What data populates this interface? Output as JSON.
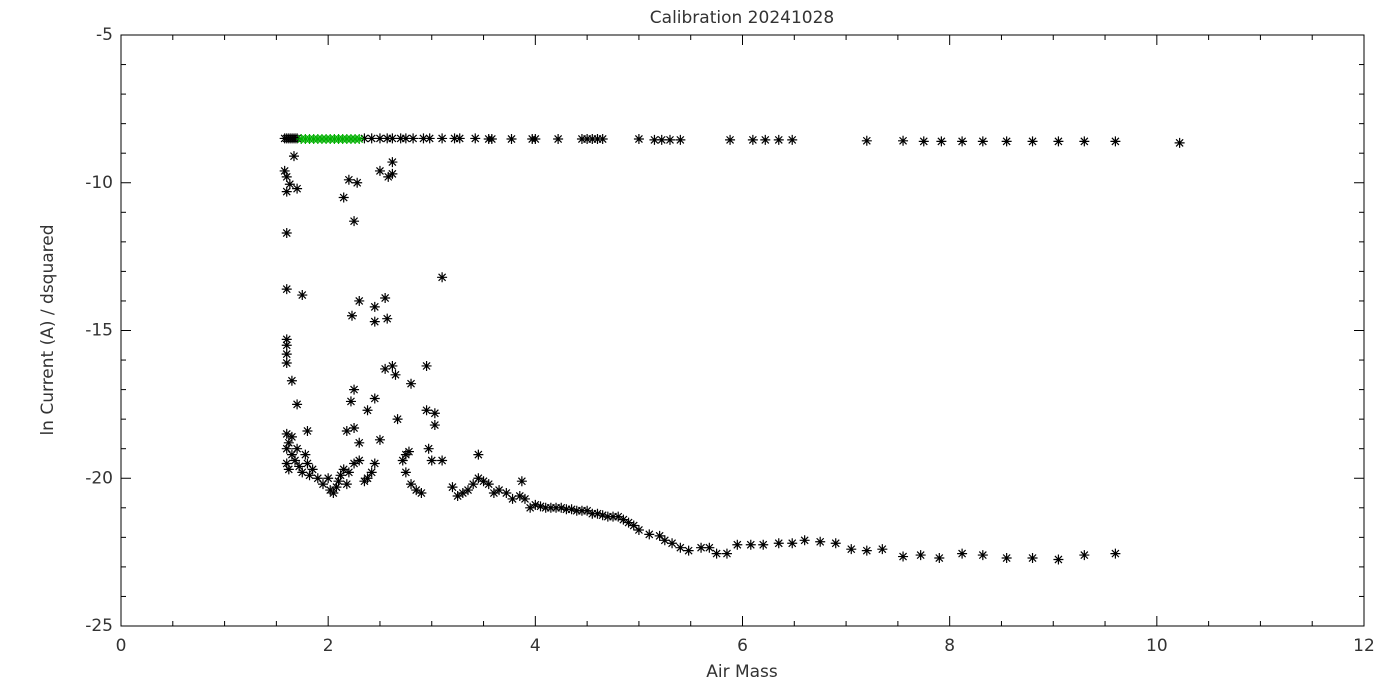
{
  "chart_data": {
    "type": "scatter",
    "title": "Calibration 20241028",
    "x_label": "Air Mass",
    "y_label": "ln Current (A) / dsquared",
    "xlim": [
      0,
      12
    ],
    "xticks": [
      0,
      2,
      4,
      6,
      8,
      10,
      12
    ],
    "ylim": [
      -25,
      -5
    ],
    "yticks": [
      -25,
      -20,
      -15,
      -10,
      -5
    ],
    "series": [
      {
        "color": "#000000",
        "x": [
          1.58,
          1.6,
          1.62,
          1.64,
          1.66,
          1.68,
          1.7,
          2.35,
          2.42,
          2.5,
          2.57,
          2.62,
          2.7,
          2.75,
          2.82,
          2.92,
          2.98,
          3.1,
          3.22,
          3.27,
          3.42,
          3.55,
          3.58,
          3.77,
          3.97,
          4.0,
          4.22,
          4.45,
          4.5,
          4.55,
          4.6,
          4.65,
          5.0,
          5.15,
          5.22,
          5.3,
          5.4,
          5.88,
          6.1,
          6.22,
          6.35,
          6.48,
          7.2,
          7.55,
          7.75,
          7.92,
          8.12,
          8.32,
          8.55,
          8.8,
          9.05,
          9.3,
          9.6,
          10.22,
          1.58,
          1.6,
          1.63,
          1.6,
          1.67,
          1.7,
          1.6,
          1.6,
          1.75,
          1.6,
          1.6,
          1.6,
          1.6,
          1.65,
          1.7,
          1.8,
          2.15,
          2.2,
          2.28,
          2.25,
          2.3,
          2.23,
          2.45,
          2.45,
          2.55,
          2.57,
          2.5,
          2.58,
          2.62,
          2.62,
          3.1,
          2.55,
          2.62,
          2.65,
          2.8,
          2.95,
          2.25,
          2.22,
          2.45,
          2.38,
          2.95,
          3.03,
          3.03,
          2.18,
          2.25,
          2.3,
          2.67,
          2.97,
          2.5,
          3.0,
          3.1,
          3.45,
          1.6,
          1.62,
          1.6,
          1.65,
          1.6,
          1.62,
          1.68,
          1.7,
          1.72,
          1.75,
          1.8,
          1.82,
          1.85,
          1.9,
          1.95,
          2.0,
          2.02,
          2.05,
          2.08,
          2.1,
          2.12,
          2.15,
          2.18,
          2.2,
          2.25,
          2.3,
          2.35,
          2.38,
          2.42,
          2.45,
          1.65,
          1.78,
          2.72,
          2.75,
          2.78,
          2.75,
          2.8,
          2.85,
          2.9,
          3.2,
          3.25,
          3.3,
          3.35,
          3.4,
          3.45,
          3.5,
          3.55,
          3.6,
          3.65,
          3.72,
          3.78,
          3.85,
          3.9,
          3.87,
          3.95,
          4.0,
          4.05,
          4.1,
          4.15,
          4.2,
          4.25,
          4.3,
          4.35,
          4.4,
          4.45,
          4.5,
          4.55,
          4.6,
          4.65,
          4.7,
          4.75,
          4.8,
          4.85,
          4.9,
          4.95,
          5.0,
          5.1,
          5.2,
          5.25,
          5.32,
          5.4,
          5.48,
          5.6,
          5.68,
          5.75,
          5.85,
          5.95,
          6.08,
          6.2,
          6.35,
          6.48,
          6.6,
          6.75,
          6.9,
          7.05,
          7.2,
          7.35,
          7.55,
          7.72,
          7.9,
          8.12,
          8.32,
          8.55,
          8.8,
          9.05,
          9.3,
          9.6
        ],
        "values": [
          -8.5,
          -8.5,
          -8.5,
          -8.5,
          -8.5,
          -8.5,
          -8.5,
          -8.5,
          -8.5,
          -8.5,
          -8.5,
          -8.5,
          -8.5,
          -8.5,
          -8.5,
          -8.5,
          -8.5,
          -8.5,
          -8.5,
          -8.5,
          -8.5,
          -8.52,
          -8.52,
          -8.52,
          -8.52,
          -8.52,
          -8.52,
          -8.52,
          -8.52,
          -8.52,
          -8.52,
          -8.52,
          -8.52,
          -8.55,
          -8.55,
          -8.55,
          -8.55,
          -8.55,
          -8.55,
          -8.55,
          -8.55,
          -8.55,
          -8.58,
          -8.58,
          -8.6,
          -8.6,
          -8.6,
          -8.6,
          -8.6,
          -8.6,
          -8.6,
          -8.6,
          -8.6,
          -8.65,
          -9.6,
          -9.8,
          -10.05,
          -10.3,
          -9.1,
          -10.2,
          -11.7,
          -13.6,
          -13.8,
          -15.3,
          -15.5,
          -15.8,
          -16.1,
          -16.7,
          -17.5,
          -18.4,
          -10.5,
          -9.9,
          -10.0,
          -11.3,
          -14.0,
          -14.5,
          -14.2,
          -14.7,
          -13.9,
          -14.6,
          -9.6,
          -9.8,
          -9.3,
          -9.7,
          -13.2,
          -16.3,
          -16.2,
          -16.5,
          -16.8,
          -16.2,
          -17.0,
          -17.4,
          -17.3,
          -17.7,
          -17.7,
          -17.8,
          -18.2,
          -18.4,
          -18.3,
          -18.8,
          -18.0,
          -19.0,
          -18.7,
          -19.4,
          -19.4,
          -19.2,
          -18.5,
          -18.8,
          -19.0,
          -19.2,
          -19.5,
          -19.7,
          -19.4,
          -19.0,
          -19.6,
          -19.8,
          -19.5,
          -19.9,
          -19.7,
          -20.0,
          -20.2,
          -20.0,
          -20.4,
          -20.5,
          -20.3,
          -20.1,
          -19.9,
          -19.7,
          -20.2,
          -19.8,
          -19.5,
          -19.4,
          -20.1,
          -20.0,
          -19.8,
          -19.5,
          -18.6,
          -19.2,
          -19.4,
          -19.2,
          -19.1,
          -19.8,
          -20.2,
          -20.4,
          -20.5,
          -20.3,
          -20.6,
          -20.5,
          -20.4,
          -20.2,
          -20.0,
          -20.1,
          -20.2,
          -20.5,
          -20.4,
          -20.5,
          -20.7,
          -20.6,
          -20.7,
          -20.1,
          -21.0,
          -20.9,
          -20.95,
          -21.0,
          -21.0,
          -21.0,
          -21.0,
          -21.05,
          -21.05,
          -21.1,
          -21.1,
          -21.1,
          -21.2,
          -21.2,
          -21.25,
          -21.3,
          -21.3,
          -21.3,
          -21.4,
          -21.5,
          -21.6,
          -21.75,
          -21.9,
          -21.95,
          -22.1,
          -22.2,
          -22.35,
          -22.45,
          -22.35,
          -22.35,
          -22.55,
          -22.55,
          -22.25,
          -22.25,
          -22.25,
          -22.2,
          -22.2,
          -22.1,
          -22.15,
          -22.2,
          -22.4,
          -22.45,
          -22.4,
          -22.65,
          -22.6,
          -22.7,
          -22.55,
          -22.6,
          -22.7,
          -22.7,
          -22.75,
          -22.6,
          -22.55
        ]
      },
      {
        "color": "#00b000",
        "x": [
          1.74,
          1.78,
          1.82,
          1.86,
          1.9,
          1.94,
          1.98,
          2.02,
          2.06,
          2.1,
          2.14,
          2.18,
          2.22,
          2.26,
          2.3
        ],
        "values": [
          -8.52,
          -8.52,
          -8.52,
          -8.52,
          -8.52,
          -8.52,
          -8.52,
          -8.52,
          -8.52,
          -8.52,
          -8.52,
          -8.52,
          -8.52,
          -8.52,
          -8.52
        ]
      }
    ]
  }
}
